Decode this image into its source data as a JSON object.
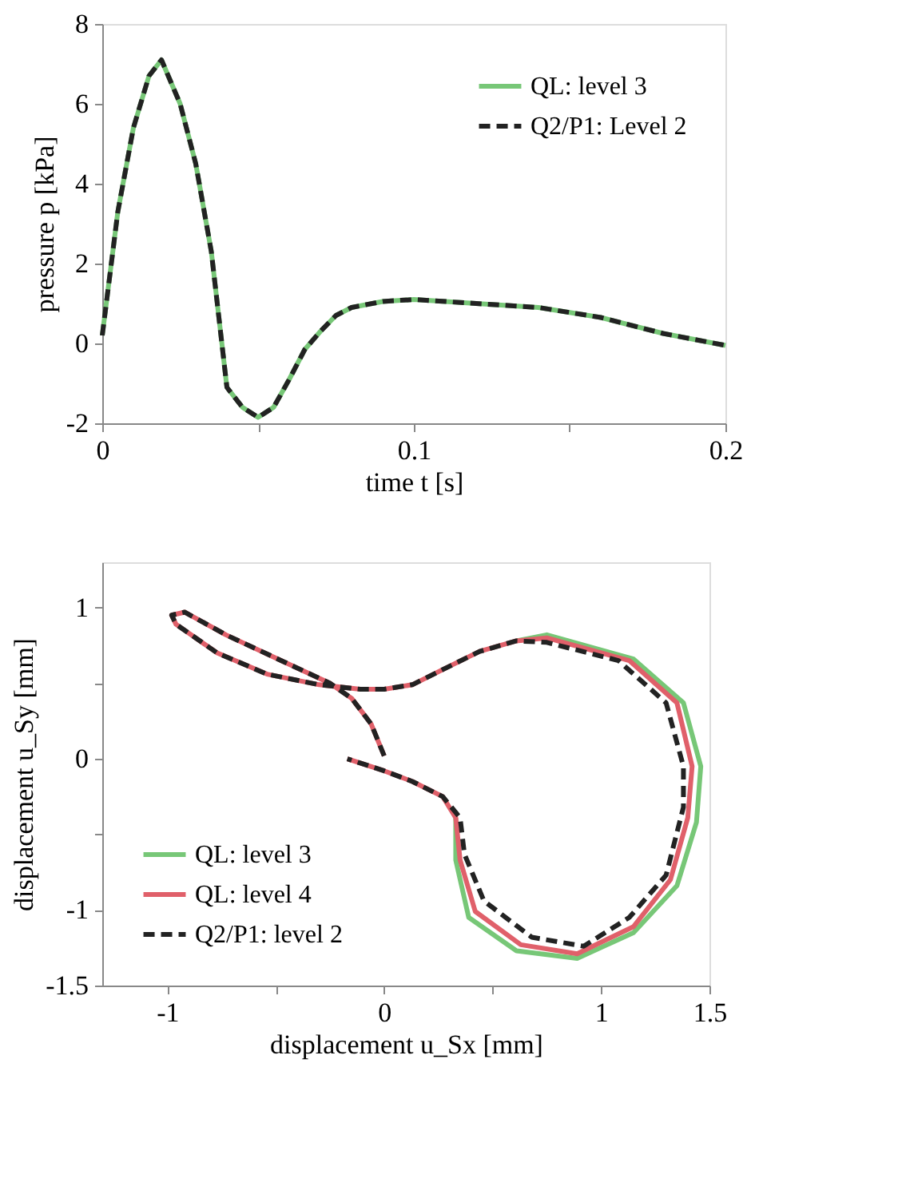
{
  "chart_data": [
    {
      "type": "line",
      "xlabel": "time t  [s]",
      "ylabel": "pressure p [kPa]",
      "xlim": [
        0,
        0.2
      ],
      "ylim": [
        -2,
        8
      ],
      "xticks": [
        0,
        {
          "value": 0.05,
          "label": null
        },
        0.1,
        {
          "value": 0.15,
          "label": null
        },
        0.2
      ],
      "yticks": [
        -2,
        0,
        2,
        4,
        6,
        8
      ],
      "grid": false,
      "legend": "top right",
      "marker": "none",
      "x": [
        0,
        0.005,
        0.01,
        0.015,
        0.019,
        0.025,
        0.03,
        0.035,
        0.04,
        0.045,
        0.05,
        0.055,
        0.06,
        0.065,
        0.07,
        0.075,
        0.08,
        0.09,
        0.1,
        0.12,
        0.14,
        0.16,
        0.18,
        0.2
      ],
      "series": [
        {
          "name": "QL: level 3",
          "color": "#77c777",
          "line_style": "solid",
          "values": [
            0.2,
            3.3,
            5.4,
            6.7,
            7.1,
            6.0,
            4.5,
            2.3,
            -1.1,
            -1.6,
            -1.85,
            -1.6,
            -0.9,
            -0.15,
            0.3,
            0.7,
            0.9,
            1.05,
            1.1,
            1.0,
            0.9,
            0.65,
            0.25,
            -0.05
          ]
        },
        {
          "name": "Q2/P1: Level 2",
          "color": "#222222",
          "line_style": "dashed",
          "values": [
            0.2,
            3.3,
            5.4,
            6.7,
            7.1,
            6.0,
            4.5,
            2.3,
            -1.1,
            -1.6,
            -1.85,
            -1.6,
            -0.9,
            -0.15,
            0.3,
            0.7,
            0.9,
            1.05,
            1.1,
            1.0,
            0.9,
            0.65,
            0.25,
            -0.05
          ]
        }
      ]
    },
    {
      "type": "line",
      "xlabel": "displacement u_Sx [mm]",
      "ylabel": "displacement u_Sy [mm]",
      "xlim": [
        -1.3,
        1.5
      ],
      "ylim": [
        -1.5,
        1.3
      ],
      "xticks": [
        -1,
        {
          "value": -0.5,
          "label": null
        },
        0,
        {
          "value": 0.5,
          "label": null
        },
        1,
        1.5
      ],
      "yticks": [
        -1.5,
        -1,
        {
          "value": -0.5,
          "label": null
        },
        0,
        {
          "value": 0.5,
          "label": null
        },
        1
      ],
      "grid": false,
      "legend": "bottom left",
      "marker": "none",
      "series": [
        {
          "name": "QL: level 3",
          "color": "#77c777",
          "line_style": "solid",
          "x": [
            0.61,
            0.75,
            1.15,
            1.38,
            1.46,
            1.44,
            1.35,
            1.15,
            0.89,
            0.61,
            0.39,
            0.33,
            0.33
          ],
          "values": [
            0.78,
            0.82,
            0.66,
            0.37,
            -0.05,
            -0.42,
            -0.84,
            -1.15,
            -1.32,
            -1.27,
            -1.05,
            -0.67,
            -0.39
          ]
        },
        {
          "name": "QL: level 4",
          "color": "#e0606a",
          "line_style": "solid",
          "x": [
            0,
            -0.06,
            -0.15,
            -0.25,
            -0.46,
            -0.73,
            -0.92,
            -0.98,
            -0.96,
            -0.77,
            -0.54,
            -0.3,
            -0.11,
            0,
            0.13,
            0.27,
            0.44,
            0.61,
            0.75,
            1.13,
            1.35,
            1.42,
            1.4,
            1.32,
            1.15,
            0.89,
            0.63,
            0.42,
            0.35,
            0.33,
            0.27,
            0.13,
            0,
            -0.17
          ],
          "values": [
            0.02,
            0.23,
            0.4,
            0.5,
            0.64,
            0.82,
            0.97,
            0.95,
            0.89,
            0.7,
            0.56,
            0.49,
            0.46,
            0.46,
            0.49,
            0.59,
            0.71,
            0.78,
            0.8,
            0.65,
            0.37,
            -0.05,
            -0.39,
            -0.8,
            -1.11,
            -1.29,
            -1.23,
            -1.01,
            -0.67,
            -0.39,
            -0.25,
            -0.15,
            -0.08,
            0.0
          ]
        },
        {
          "name": "Q2/P1: level 2",
          "color": "#222222",
          "line_style": "dashed",
          "x": [
            0,
            -0.06,
            -0.15,
            -0.25,
            -0.46,
            -0.73,
            -0.92,
            -0.98,
            -0.96,
            -0.77,
            -0.54,
            -0.3,
            -0.11,
            0,
            0.13,
            0.27,
            0.44,
            0.61,
            0.75,
            1.08,
            1.3,
            1.38,
            1.38,
            1.3,
            1.13,
            0.92,
            0.68,
            0.46,
            0.37,
            0.35,
            0.27,
            0.13,
            0,
            -0.17
          ],
          "values": [
            0.02,
            0.23,
            0.4,
            0.5,
            0.64,
            0.82,
            0.97,
            0.95,
            0.89,
            0.7,
            0.56,
            0.49,
            0.46,
            0.46,
            0.49,
            0.59,
            0.71,
            0.78,
            0.77,
            0.65,
            0.37,
            -0.05,
            -0.32,
            -0.77,
            -1.05,
            -1.24,
            -1.18,
            -0.94,
            -0.63,
            -0.39,
            -0.25,
            -0.15,
            -0.08,
            0.0
          ]
        }
      ]
    }
  ]
}
